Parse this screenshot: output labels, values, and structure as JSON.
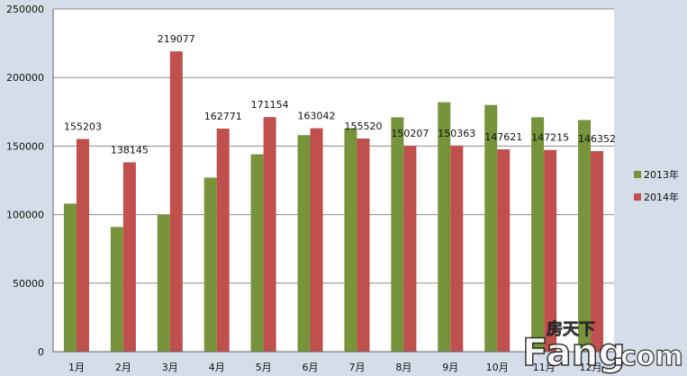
{
  "chart_data": {
    "type": "bar",
    "categories": [
      "1月",
      "2月",
      "3月",
      "4月",
      "5月",
      "6月",
      "7月",
      "8月",
      "9月",
      "10月",
      "11月",
      "12月"
    ],
    "series": [
      {
        "name": "2013年",
        "color": "#77933c",
        "values": [
          108000,
          91000,
          100000,
          127000,
          144000,
          158000,
          163000,
          171000,
          182000,
          180000,
          171000,
          169000
        ]
      },
      {
        "name": "2014年",
        "color": "#c0504d",
        "values": [
          155203,
          138145,
          219077,
          162771,
          171154,
          163042,
          155520,
          150207,
          150363,
          147621,
          147215,
          146352
        ],
        "data_labels": [
          "155203",
          "138145",
          "219077",
          "162771",
          "171154",
          "163042",
          "155520",
          "150207",
          "150363",
          "147621",
          "147215",
          "146352"
        ]
      }
    ],
    "ylim": [
      0,
      250000
    ],
    "yticks": [
      0,
      50000,
      100000,
      150000,
      200000,
      250000
    ],
    "ytick_labels": [
      "0",
      "50000",
      "100000",
      "150000",
      "200000",
      "250000"
    ],
    "grid": true,
    "legend_position": "right",
    "plot_background": "#ffffff",
    "gridline_color": "#8c8c8c"
  },
  "watermark": {
    "main": "Fang",
    "dot": ".",
    "suffix": "com",
    "cn": "房天下"
  }
}
